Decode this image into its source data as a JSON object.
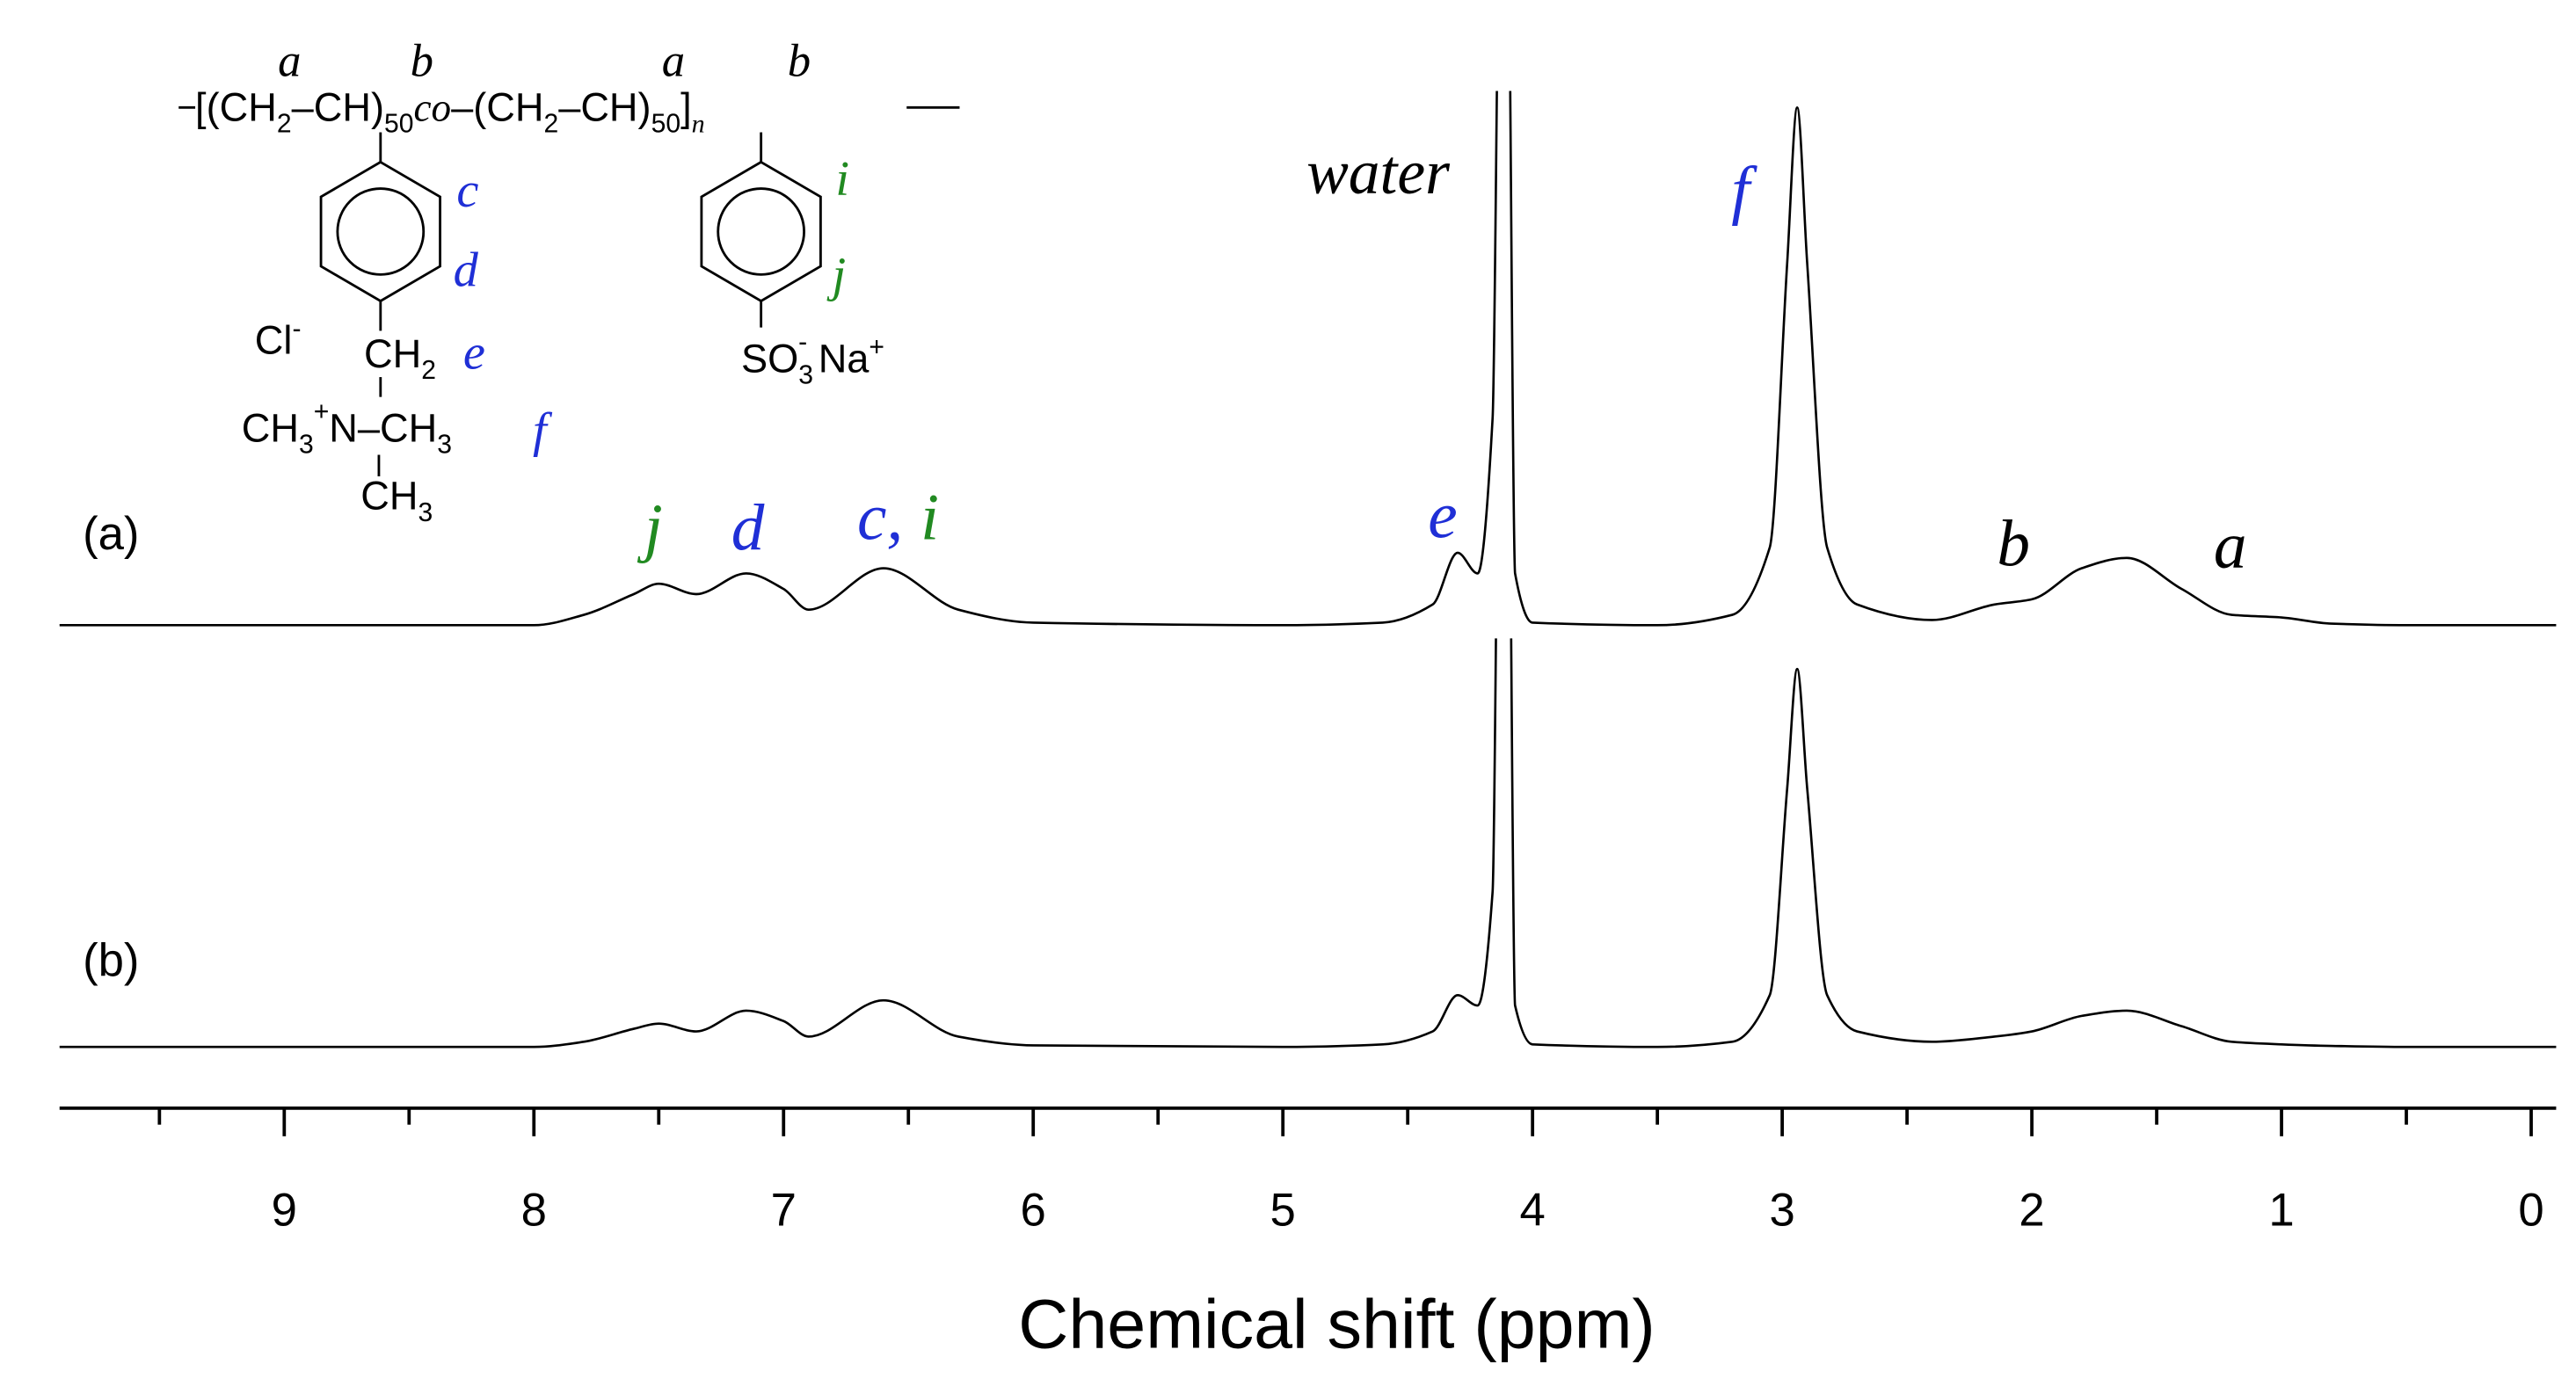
{
  "chart_data": {
    "type": "line",
    "x_label": "Chemical shift (ppm)",
    "xlim": [
      9.9,
      -0.1
    ],
    "xticks": [
      9,
      8,
      7,
      6,
      5,
      4,
      3,
      2,
      1,
      0
    ],
    "xminor_ticks": [
      9.5,
      8.5,
      7.5,
      6.5,
      5.5,
      4.5,
      3.5,
      2.5,
      1.5,
      0.5
    ],
    "x": [
      9.9,
      8.0,
      7.8,
      7.6,
      7.5,
      7.35,
      7.15,
      7.0,
      6.9,
      6.6,
      6.3,
      6.0,
      5.0,
      4.6,
      4.4,
      4.3,
      4.22,
      4.16,
      4.13,
      4.1,
      4.07,
      4.0,
      3.5,
      3.2,
      3.05,
      2.98,
      2.94,
      2.9,
      2.82,
      2.7,
      2.4,
      2.15,
      2.0,
      1.8,
      1.62,
      1.4,
      1.2,
      1.0,
      0.8,
      0.5,
      -0.1
    ],
    "series": [
      {
        "name": "(a)",
        "color": "#000000",
        "values": [
          0,
          0,
          2,
          6,
          8,
          6,
          10,
          7,
          3,
          11,
          3,
          0.5,
          0,
          0.5,
          4,
          14,
          10,
          40,
          140,
          140,
          10,
          0.5,
          0,
          2,
          15,
          70,
          100,
          70,
          15,
          4,
          1,
          4,
          5,
          11,
          13,
          7,
          2,
          1.5,
          0.3,
          0,
          0
        ]
      },
      {
        "name": "(b)",
        "color": "#000000",
        "values": [
          0,
          0,
          1,
          3.5,
          4.5,
          3,
          7,
          5,
          2,
          9,
          2,
          0.3,
          0,
          0.5,
          3,
          10,
          8,
          30,
          140,
          140,
          8,
          0.5,
          0,
          1,
          10,
          50,
          73,
          50,
          10,
          3,
          1,
          2,
          3,
          6,
          7,
          4,
          1,
          0.5,
          0.2,
          0,
          0
        ]
      }
    ],
    "annotations": [
      {
        "text": "j",
        "color": "#218a21"
      },
      {
        "text": "d",
        "color": "#1f2fd6"
      },
      {
        "text": "c,",
        "color": "#1f2fd6"
      },
      {
        "text": "i",
        "color": "#218a21"
      },
      {
        "text": "e",
        "color": "#1f2fd6"
      },
      {
        "text": "water",
        "color": "#000000"
      },
      {
        "text": "f",
        "color": "#1f2fd6"
      },
      {
        "text": "b",
        "color": "#000000"
      },
      {
        "text": "a",
        "color": "#000000"
      }
    ]
  },
  "structure": {
    "backbone": [
      "[(CH",
      "2",
      "–CH)",
      "50",
      "co",
      "–(CH",
      "2",
      "–CH)",
      "50",
      "]",
      "n"
    ],
    "carbon_labels": [
      "a",
      "b",
      "a",
      "b"
    ],
    "monomer_1": {
      "ring_labels": [
        "c",
        "d"
      ],
      "counter_ion": [
        "Cl",
        "-"
      ],
      "methylene": [
        "CH",
        "2"
      ],
      "methylene_label": "e",
      "ammonium": [
        "CH",
        "3",
        "+",
        "N",
        "–CH",
        "3"
      ],
      "methyl_label": "f",
      "methyl_bottom": [
        "CH",
        "3"
      ]
    },
    "monomer_2": {
      "ring_labels": [
        "i",
        "j"
      ],
      "sulfonate": [
        "SO",
        "3",
        "-",
        " Na",
        "+"
      ]
    }
  }
}
